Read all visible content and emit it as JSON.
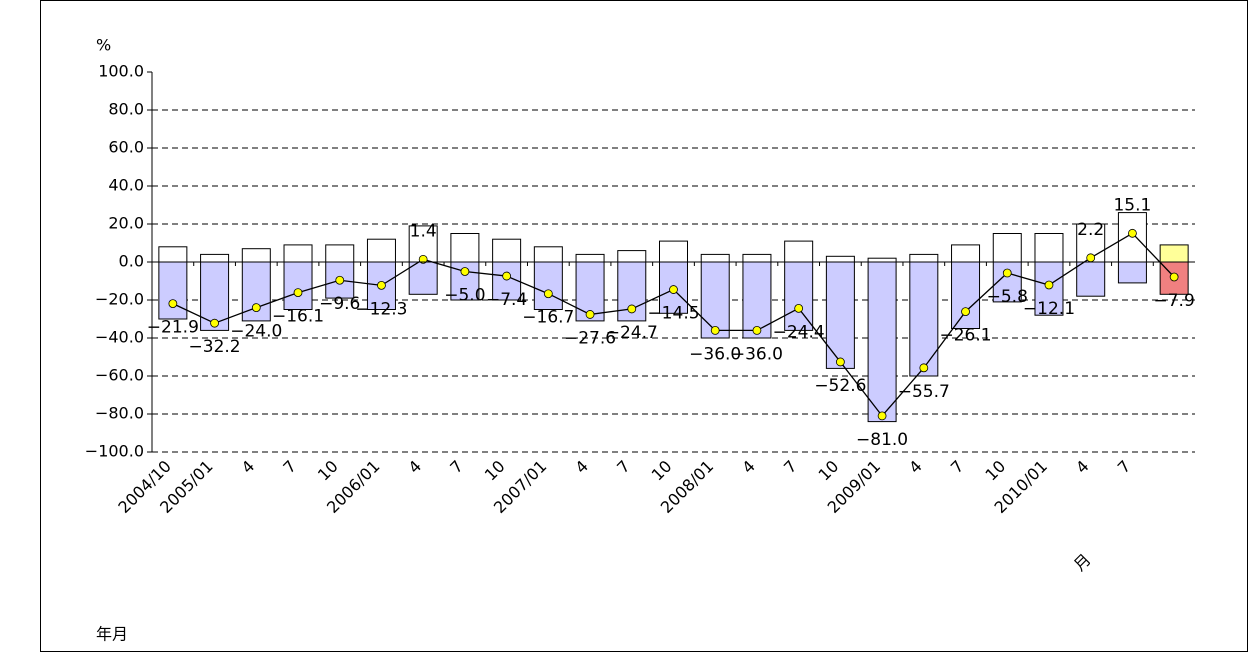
{
  "chart_data": {
    "type": "bar",
    "y_label": "%",
    "x_label": "月",
    "annotation": "年月",
    "categories": [
      "2004/10",
      "2005/01",
      "4",
      "7",
      "10",
      "2006/01",
      "4",
      "7",
      "10",
      "2007/01",
      "4",
      "7",
      "10",
      "2008/01",
      "4",
      "7",
      "10",
      "2009/01",
      "4",
      "7",
      "10",
      "2010/01",
      "4",
      "7",
      null
    ],
    "series": [
      {
        "type": "bar",
        "color": "#ffffff",
        "colors": [
          "#ffffff",
          "#ffffff",
          "#ffffff",
          "#ffffff",
          "#ffffff",
          "#ffffff",
          "#ffffff",
          "#ffffff",
          "#ffffff",
          "#ffffff",
          "#ffffff",
          "#ffffff",
          "#ffffff",
          "#ffffff",
          "#ffffff",
          "#ffffff",
          "#ffffff",
          "#ffffff",
          "#ffffff",
          "#ffffff",
          "#ffffff",
          "#ffffff",
          "#ffffff",
          "#ffffff",
          "#ffff99"
        ],
        "values": [
          8,
          4,
          7,
          9,
          9,
          12,
          19,
          15,
          12,
          8,
          4,
          6,
          11,
          4,
          4,
          11,
          3,
          2,
          4,
          9,
          15,
          15,
          20,
          26,
          9
        ]
      },
      {
        "type": "bar",
        "color": "#ccccff",
        "colors": [
          "#ccccff",
          "#ccccff",
          "#ccccff",
          "#ccccff",
          "#ccccff",
          "#ccccff",
          "#ccccff",
          "#ccccff",
          "#ccccff",
          "#ccccff",
          "#ccccff",
          "#ccccff",
          "#ccccff",
          "#ccccff",
          "#ccccff",
          "#ccccff",
          "#ccccff",
          "#ccccff",
          "#ccccff",
          "#ccccff",
          "#ccccff",
          "#ccccff",
          "#ccccff",
          "#ccccff",
          "#f08080"
        ],
        "values": [
          -30,
          -36,
          -31,
          -25,
          -19,
          -25,
          -17,
          -20,
          -20,
          -25,
          -31,
          -31,
          -27,
          -40,
          -40,
          -36,
          -56,
          -84,
          -60,
          -35,
          -21,
          -28,
          -18,
          -11,
          -17
        ]
      },
      {
        "type": "line",
        "color": "#000000",
        "marker_color": "#ffff00",
        "values": [
          -21.9,
          -32.2,
          -24.0,
          -16.1,
          -9.6,
          -12.3,
          1.4,
          -5.0,
          -7.4,
          -16.7,
          -27.6,
          -24.7,
          -14.5,
          -36.0,
          -36.0,
          -24.4,
          -52.6,
          -81.0,
          -55.7,
          -26.1,
          -5.8,
          -12.1,
          2.2,
          15.1,
          -7.9
        ],
        "value_labels": [
          "−21.9",
          "−32.2",
          "−24.0",
          "−16.1",
          "−9.6",
          "−12.3",
          "1.4",
          "−5.0",
          "−7.4",
          "−16.7",
          "−27.6",
          "−24.7",
          "−14.5",
          "−36.0",
          "−36.0",
          "−24.4",
          "−52.6",
          "−81.0",
          "−55.7",
          "−26.1",
          "−5.8",
          "−12.1",
          "2.2",
          "15.1",
          "−7.9"
        ]
      }
    ],
    "ylim": [
      -100,
      100
    ],
    "yticks": [
      {
        "value": -100,
        "label": "−100.0"
      },
      {
        "value": -80,
        "label": "−80.0"
      },
      {
        "value": -60,
        "label": "−60.0"
      },
      {
        "value": -40,
        "label": "−40.0"
      },
      {
        "value": -20,
        "label": "−20.0"
      },
      {
        "value": 0,
        "label": "0.0"
      },
      {
        "value": 20,
        "label": "20.0"
      },
      {
        "value": 40,
        "label": "40.0"
      },
      {
        "value": 60,
        "label": "60.0"
      },
      {
        "value": 80,
        "label": "80.0"
      },
      {
        "value": 100,
        "label": "100.0"
      }
    ],
    "grid": true
  }
}
